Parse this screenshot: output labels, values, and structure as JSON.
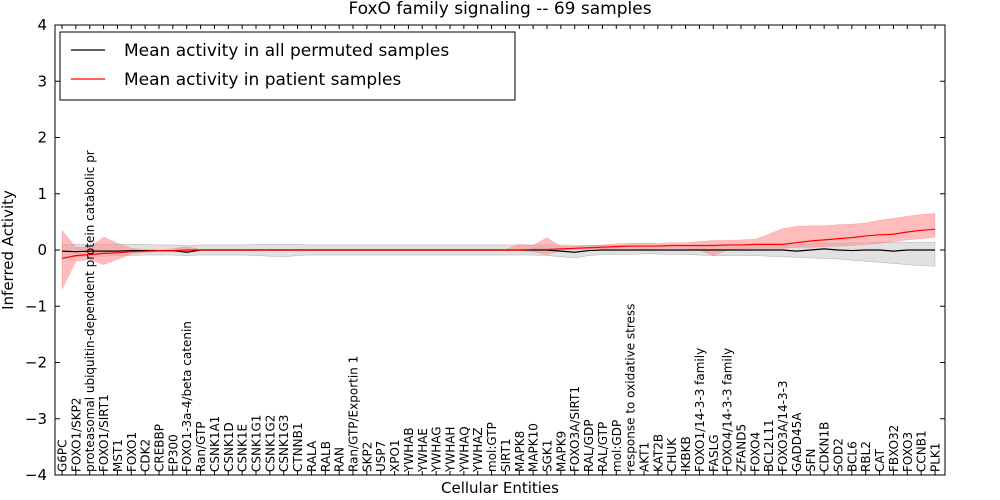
{
  "chart_data": {
    "type": "line",
    "title": "FoxO family signaling -- 69 samples",
    "xlabel": "Cellular Entities",
    "ylabel": "Inferred Activity",
    "ylim": [
      -4,
      4
    ],
    "yticks": [
      -4,
      -3,
      -2,
      -1,
      0,
      1,
      2,
      3,
      4
    ],
    "grid": false,
    "legend_position": "top-left",
    "categories": [
      "G6PC",
      "FOXO1/SKP2",
      "proteasomal ubiquitin-dependent protein catabolic pr",
      "FOXO1/SIRT1",
      "MST1",
      "FOXO1",
      "CDK2",
      "CREBBP",
      "EP300",
      "FOXO1-3a-4/beta catenin",
      "Ran/GTP",
      "CSNK1A1",
      "CSNK1D",
      "CSNK1E",
      "CSNK1G1",
      "CSNK1G2",
      "CSNK1G3",
      "CTNNB1",
      "RALA",
      "RALB",
      "RAN",
      "Ran/GTP/Exportin 1",
      "SKP2",
      "USP7",
      "XPO1",
      "YWHAB",
      "YWHAE",
      "YWHAG",
      "YWHAH",
      "YWHAQ",
      "YWHAZ",
      "mol:GTP",
      "SIRT1",
      "MAPK8",
      "MAPK10",
      "SGK1",
      "MAPK9",
      "FOXO3A/SIRT1",
      "RAL/GDP",
      "RAL/GTP",
      "mol:GDP",
      "response to oxidative stress",
      "AKT1",
      "KAT2B",
      "CHUK",
      "IKBKB",
      "FOXO1/14-3-3 family",
      "FASLG",
      "FOXO4/14-3-3 family",
      "ZFAND5",
      "FOXO4",
      "BCL2L11",
      "FOXO3A/14-3-3",
      "GADD45A",
      "SFN",
      "CDKN1B",
      "SOD2",
      "BCL6",
      "RBL2",
      "CAT",
      "FBXO32",
      "FOXO3",
      "CCNB1",
      "PLK1"
    ],
    "series": [
      {
        "name": "Mean activity in all permuted samples",
        "color": "#000000",
        "band_color": "#c8c8c8",
        "values": [
          -0.02,
          -0.03,
          -0.02,
          -0.02,
          -0.02,
          -0.01,
          -0.01,
          -0.01,
          -0.01,
          -0.04,
          0.0,
          0.0,
          0.0,
          0.0,
          0.0,
          0.0,
          0.0,
          0.0,
          0.0,
          0.0,
          0.0,
          0.0,
          0.0,
          0.0,
          0.0,
          0.0,
          0.0,
          0.0,
          0.0,
          0.0,
          0.0,
          0.0,
          0.0,
          0.0,
          0.0,
          0.0,
          -0.02,
          -0.04,
          -0.01,
          0.0,
          0.0,
          0.0,
          0.0,
          0.0,
          0.0,
          0.0,
          0.0,
          0.0,
          0.0,
          0.0,
          0.0,
          0.0,
          0.0,
          -0.02,
          0.0,
          0.02,
          0.0,
          -0.01,
          0.0,
          0.0,
          -0.02,
          0.0,
          0.0,
          0.0
        ],
        "lower": [
          -0.12,
          -0.12,
          -0.11,
          -0.11,
          -0.1,
          -0.1,
          -0.09,
          -0.09,
          -0.09,
          -0.1,
          -0.09,
          -0.09,
          -0.09,
          -0.09,
          -0.1,
          -0.11,
          -0.12,
          -0.1,
          -0.09,
          -0.09,
          -0.09,
          -0.09,
          -0.09,
          -0.09,
          -0.09,
          -0.09,
          -0.09,
          -0.09,
          -0.09,
          -0.09,
          -0.09,
          -0.09,
          -0.09,
          -0.09,
          -0.09,
          -0.1,
          -0.12,
          -0.14,
          -0.1,
          -0.08,
          -0.08,
          -0.08,
          -0.07,
          -0.07,
          -0.08,
          -0.08,
          -0.09,
          -0.1,
          -0.1,
          -0.1,
          -0.1,
          -0.11,
          -0.12,
          -0.13,
          -0.14,
          -0.15,
          -0.16,
          -0.18,
          -0.2,
          -0.22,
          -0.24,
          -0.26,
          -0.28,
          -0.29
        ],
        "upper": [
          0.1,
          0.1,
          0.1,
          0.1,
          0.1,
          0.1,
          0.1,
          0.09,
          0.09,
          0.08,
          0.09,
          0.09,
          0.09,
          0.09,
          0.1,
          0.1,
          0.1,
          0.1,
          0.09,
          0.09,
          0.09,
          0.09,
          0.09,
          0.09,
          0.09,
          0.09,
          0.09,
          0.09,
          0.09,
          0.09,
          0.09,
          0.09,
          0.09,
          0.09,
          0.09,
          0.09,
          0.09,
          0.08,
          0.08,
          0.08,
          0.08,
          0.08,
          0.07,
          0.07,
          0.08,
          0.08,
          0.08,
          0.08,
          0.09,
          0.09,
          0.09,
          0.1,
          0.1,
          0.1,
          0.11,
          0.12,
          0.12,
          0.13,
          0.13,
          0.14,
          0.14,
          0.14,
          0.14,
          0.14
        ]
      },
      {
        "name": "Mean activity in patient samples",
        "color": "#ff0000",
        "band_color": "#ff9090",
        "values": [
          -0.15,
          -0.1,
          -0.08,
          -0.06,
          -0.05,
          -0.03,
          -0.02,
          -0.01,
          -0.01,
          0.0,
          0.0,
          0.0,
          0.0,
          0.0,
          0.0,
          0.0,
          0.0,
          0.0,
          0.0,
          0.0,
          0.0,
          0.0,
          0.0,
          0.0,
          0.0,
          0.0,
          0.0,
          0.0,
          0.0,
          0.0,
          0.0,
          0.0,
          0.0,
          0.0,
          0.01,
          0.01,
          0.02,
          0.03,
          0.04,
          0.05,
          0.06,
          0.07,
          0.07,
          0.07,
          0.08,
          0.08,
          0.08,
          0.08,
          0.09,
          0.09,
          0.1,
          0.1,
          0.1,
          0.13,
          0.16,
          0.18,
          0.2,
          0.22,
          0.25,
          0.27,
          0.28,
          0.32,
          0.35,
          0.37
        ],
        "lower": [
          -0.7,
          -0.2,
          -0.17,
          -0.26,
          -0.17,
          -0.07,
          -0.04,
          -0.03,
          -0.03,
          -0.02,
          -0.01,
          -0.01,
          -0.01,
          -0.01,
          -0.01,
          -0.01,
          -0.01,
          -0.01,
          -0.01,
          -0.01,
          -0.01,
          -0.01,
          -0.01,
          -0.01,
          -0.01,
          -0.01,
          -0.01,
          -0.01,
          -0.01,
          -0.01,
          -0.01,
          -0.01,
          -0.01,
          -0.01,
          -0.03,
          -0.08,
          0.0,
          0.01,
          0.02,
          0.02,
          0.03,
          0.03,
          0.03,
          0.03,
          0.03,
          0.03,
          0.0,
          -0.1,
          0.0,
          0.02,
          0.03,
          0.03,
          0.03,
          0.05,
          0.05,
          0.06,
          0.07,
          0.08,
          0.1,
          0.12,
          0.15,
          0.18,
          0.2,
          0.23
        ],
        "upper": [
          0.35,
          0.05,
          0.05,
          0.23,
          0.12,
          0.03,
          0.01,
          0.0,
          0.02,
          0.06,
          0.01,
          0.01,
          0.01,
          0.01,
          0.01,
          0.01,
          0.01,
          0.01,
          0.01,
          0.01,
          0.01,
          0.01,
          0.01,
          0.01,
          0.01,
          0.01,
          0.01,
          0.01,
          0.01,
          0.01,
          0.01,
          0.01,
          0.01,
          0.1,
          0.08,
          0.22,
          0.06,
          0.06,
          0.08,
          0.09,
          0.11,
          0.12,
          0.12,
          0.12,
          0.13,
          0.13,
          0.15,
          0.17,
          0.17,
          0.18,
          0.19,
          0.28,
          0.38,
          0.42,
          0.43,
          0.43,
          0.45,
          0.46,
          0.48,
          0.53,
          0.56,
          0.6,
          0.63,
          0.65
        ]
      }
    ]
  }
}
